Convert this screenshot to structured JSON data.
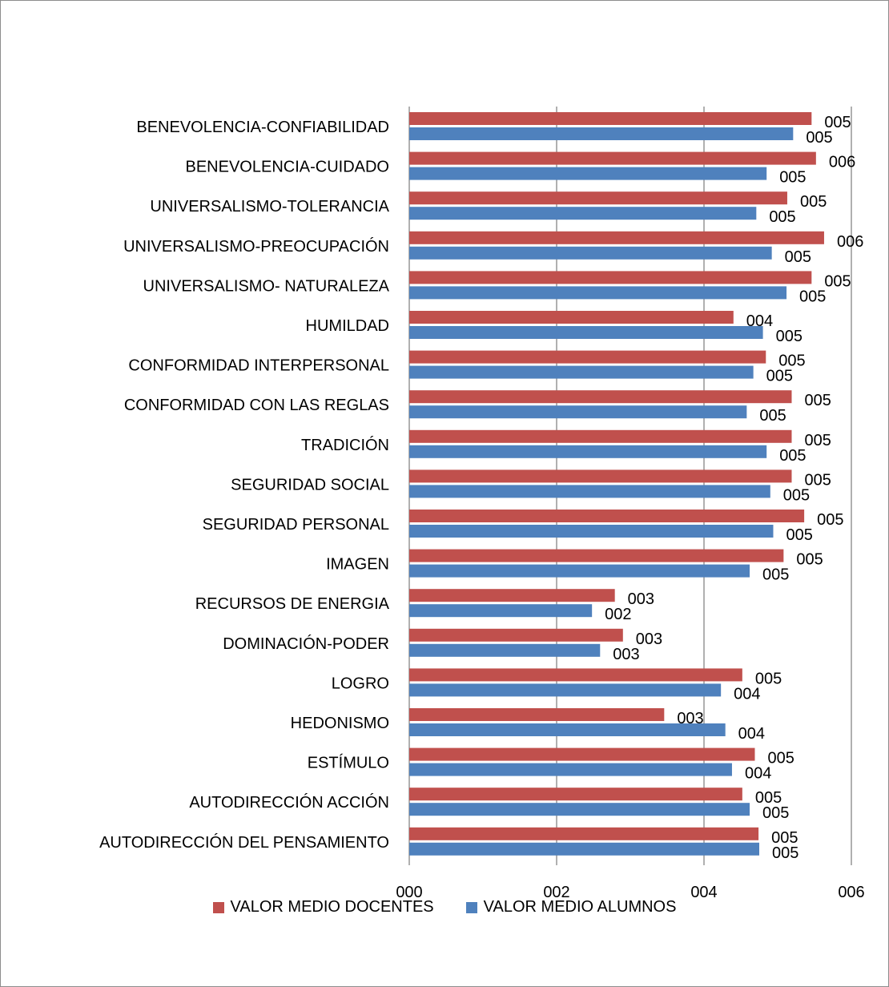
{
  "chart_data": {
    "type": "bar",
    "orientation": "horizontal",
    "categories": [
      "BENEVOLENCIA-CONFIABILIDAD",
      "BENEVOLENCIA-CUIDADO",
      "UNIVERSALISMO-TOLERANCIA",
      "UNIVERSALISMO-PREOCUPACIÓN",
      "UNIVERSALISMO- NATURALEZA",
      "HUMILDAD",
      "CONFORMIDAD INTERPERSONAL",
      "CONFORMIDAD CON LAS REGLAS",
      "TRADICIÓN",
      "SEGURIDAD SOCIAL",
      "SEGURIDAD PERSONAL",
      "IMAGEN",
      "RECURSOS DE ENERGIA",
      "DOMINACIÓN-PODER",
      "LOGRO",
      "HEDONISMO",
      "ESTÍMULO",
      "AUTODIRECCIÓN ACCIÓN",
      "AUTODIRECCIÓN DEL PENSAMIENTO"
    ],
    "series": [
      {
        "name": "VALOR MEDIO DOCENTES",
        "color": "#C0504D",
        "values": [
          5.46,
          5.52,
          5.13,
          5.63,
          5.46,
          4.4,
          4.84,
          5.19,
          5.19,
          5.19,
          5.36,
          5.08,
          2.79,
          2.9,
          4.52,
          3.46,
          4.69,
          4.52,
          4.74
        ],
        "data_labels": [
          "005",
          "006",
          "005",
          "006",
          "005",
          "004",
          "005",
          "005",
          "005",
          "005",
          "005",
          "005",
          "003",
          "003",
          "005",
          "003",
          "005",
          "005",
          "005"
        ]
      },
      {
        "name": "VALOR MEDIO ALUMNOS",
        "color": "#4F81BD",
        "values": [
          5.21,
          4.85,
          4.71,
          4.92,
          5.12,
          4.8,
          4.67,
          4.58,
          4.85,
          4.9,
          4.94,
          4.62,
          2.48,
          2.59,
          4.23,
          4.29,
          4.38,
          4.62,
          4.75
        ],
        "data_labels": [
          "005",
          "005",
          "005",
          "005",
          "005",
          "005",
          "005",
          "005",
          "005",
          "005",
          "005",
          "005",
          "002",
          "003",
          "004",
          "004",
          "004",
          "005",
          "005"
        ]
      }
    ],
    "x_ticks": [
      "000",
      "002",
      "004",
      "006"
    ],
    "xlim": [
      0,
      6
    ],
    "grid": true,
    "legend_position": "bottom"
  }
}
